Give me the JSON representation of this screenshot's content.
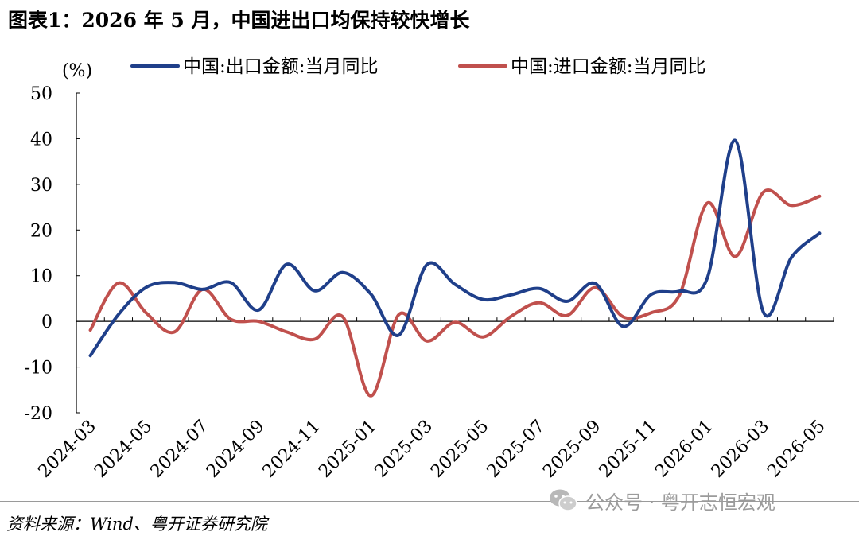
{
  "page": {
    "title": "图表1：2026 年 5 月，中国进出口均保持较快增长",
    "source": "资料来源：Wind、粤开证券研究院",
    "watermark": "公众号 · 粤开志恒宏观",
    "watermark_icon": "wechat-icon"
  },
  "chart_data": {
    "type": "line",
    "ylabel": "(%)",
    "ylim": [
      -20,
      50
    ],
    "yticks": [
      50,
      40,
      30,
      20,
      10,
      0,
      -10,
      -20
    ],
    "x_categories": [
      "2024-03",
      "2024-04",
      "2024-05",
      "2024-06",
      "2024-07",
      "2024-08",
      "2024-09",
      "2024-10",
      "2024-11",
      "2024-12",
      "2025-01",
      "2025-02",
      "2025-03",
      "2025-04",
      "2025-05",
      "2025-06",
      "2025-07",
      "2025-08",
      "2025-09",
      "2025-10",
      "2025-11",
      "2025-12",
      "2026-01",
      "2026-02",
      "2026-03",
      "2026-04",
      "2026-05"
    ],
    "xtick_labels": [
      "2024-03",
      "2024-05",
      "2024-07",
      "2024-09",
      "2024-11",
      "2025-01",
      "2025-03",
      "2025-05",
      "2025-07",
      "2025-09",
      "2025-11",
      "2026-01",
      "2026-03",
      "2026-05"
    ],
    "legend_position": "top",
    "grid": false,
    "series": [
      {
        "name": "中国:出口金额:当月同比",
        "color": "#1f3f8a",
        "values": [
          -7.5,
          1.5,
          7.5,
          8.5,
          7.0,
          8.5,
          2.5,
          12.5,
          6.7,
          10.7,
          6.0,
          -3.0,
          12.4,
          8.1,
          4.8,
          5.8,
          7.2,
          4.4,
          8.3,
          -1.1,
          5.9,
          6.6,
          9.5,
          39.6,
          2.0,
          14.0,
          19.3
        ]
      },
      {
        "name": "中国:进口金额:当月同比",
        "color": "#c0504d",
        "values": [
          -1.9,
          8.4,
          1.8,
          -2.3,
          7.0,
          0.5,
          0.0,
          -2.3,
          -3.9,
          1.0,
          -16.3,
          1.5,
          -4.3,
          -0.2,
          -3.4,
          1.1,
          4.1,
          1.3,
          7.4,
          1.0,
          1.9,
          5.7,
          25.9,
          14.2,
          28.3,
          25.4,
          27.4
        ]
      }
    ]
  }
}
